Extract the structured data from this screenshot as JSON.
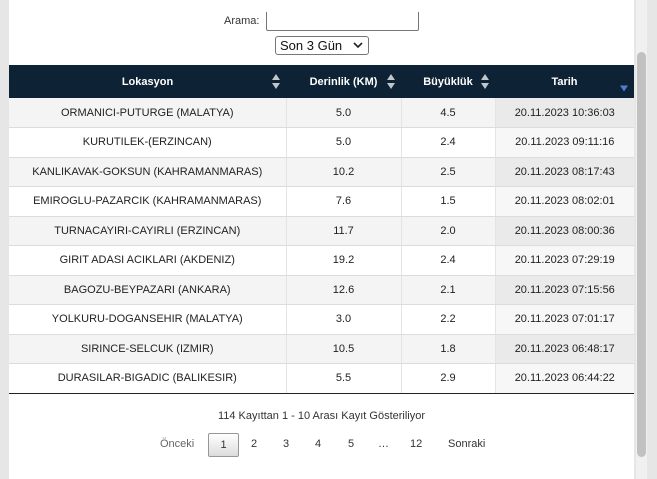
{
  "search": {
    "label": "Arama:",
    "value": ""
  },
  "range_select": {
    "selected": "Son 3 Gün"
  },
  "table": {
    "headers": [
      "Lokasyon",
      "Derinlik (KM)",
      "Büyüklük",
      "Tarih"
    ],
    "rows": [
      [
        "ORMANICI-PUTURGE (MALATYA)",
        "5.0",
        "4.5",
        "20.11.2023 10:36:03"
      ],
      [
        "KURUTILEK-(ERZINCAN)",
        "5.0",
        "2.4",
        "20.11.2023 09:11:16"
      ],
      [
        "KANLIKAVAK-GOKSUN (KAHRAMANMARAS)",
        "10.2",
        "2.5",
        "20.11.2023 08:17:43"
      ],
      [
        "EMIROGLU-PAZARCIK (KAHRAMANMARAS)",
        "7.6",
        "1.5",
        "20.11.2023 08:02:01"
      ],
      [
        "TURNACAYIRI-CAYIRLI (ERZINCAN)",
        "11.7",
        "2.0",
        "20.11.2023 08:00:36"
      ],
      [
        "GIRIT ADASI ACIKLARI (AKDENIZ)",
        "19.2",
        "2.4",
        "20.11.2023 07:29:19"
      ],
      [
        "BAGOZU-BEYPAZARI (ANKARA)",
        "12.6",
        "2.1",
        "20.11.2023 07:15:56"
      ],
      [
        "YOLKURU-DOGANSEHIR (MALATYA)",
        "3.0",
        "2.2",
        "20.11.2023 07:01:17"
      ],
      [
        "SIRINCE-SELCUK (IZMIR)",
        "10.5",
        "1.8",
        "20.11.2023 06:48:17"
      ],
      [
        "DURASILAR-BIGADIC (BALIKESIR)",
        "5.5",
        "2.9",
        "20.11.2023 06:44:22"
      ]
    ]
  },
  "info": "114 Kayıttan 1 - 10 Arası Kayıt Gösteriliyor",
  "pagination": {
    "prev": "Önceki",
    "pages": [
      "1",
      "2",
      "3",
      "4",
      "5",
      "…",
      "12"
    ],
    "current": "1",
    "next": "Sonraki"
  },
  "colors": {
    "header_bg": "#0d2235",
    "sort_active": "#4a7fd4"
  }
}
